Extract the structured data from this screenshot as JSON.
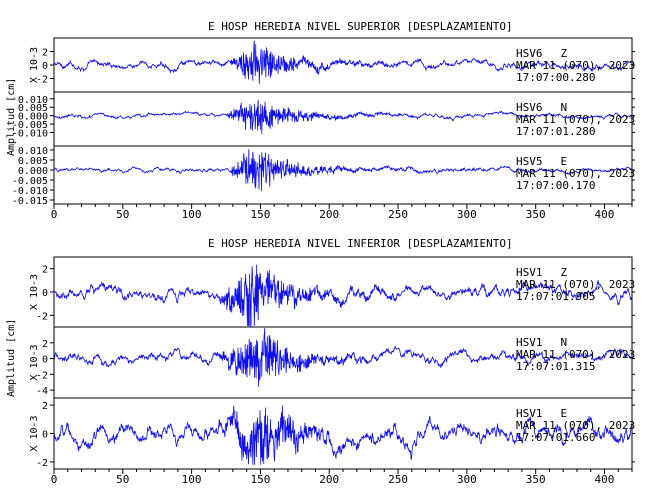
{
  "colors": {
    "trace": "#1010ee",
    "axis": "#000000",
    "background": "#ffffff"
  },
  "groups": [
    {
      "title": "E HOSP HEREDIA NIVEL SUPERIOR [DESPLAZAMIENTO]",
      "ylabel": "Amplitud [cm]",
      "xticks": [
        "0",
        "50",
        "100",
        "150",
        "200",
        "250",
        "300",
        "350",
        "400"
      ]
    },
    {
      "title": "E HOSP HEREDIA NIVEL INFERIOR [DESPLAZAMIENTO]",
      "ylabel": "Amplitud [cm]",
      "xticks": [
        "0",
        "50",
        "100",
        "150",
        "200",
        "250",
        "300",
        "350",
        "400"
      ]
    }
  ],
  "chart_data": [
    {
      "type": "line",
      "title": "E HOSP HEREDIA NIVEL SUPERIOR [DESPLAZAMIENTO]",
      "ylabel": "Amplitud [cm]",
      "xlim": [
        0,
        420
      ],
      "series": [
        {
          "name": "HSV6 Z",
          "station": "HSV6",
          "component": "Z",
          "date": "MAR 11 (070), 2023",
          "time": "17:07:00.280",
          "scale": "X 10-3",
          "ylim": [
            -4,
            4
          ],
          "yticks": [
            "2",
            "0",
            "-2"
          ],
          "tickvals": [
            2,
            0,
            -2
          ],
          "onset": 128,
          "peak_time": 147,
          "amplitude": 3.2,
          "noise": 0.35
        },
        {
          "name": "HSV6 N",
          "station": "HSV6",
          "component": "N",
          "date": "MAR 11 (070), 2023",
          "time": "17:07:01.280",
          "ylim": [
            -0.018,
            0.014
          ],
          "yticks": [
            "0.010",
            "0.005",
            "0.000",
            "-0.005",
            "-0.010"
          ],
          "tickvals": [
            0.01,
            0.005,
            0,
            -0.005,
            -0.01
          ],
          "onset": 126,
          "peak_time": 146,
          "amplitude": 0.011,
          "noise": 0.0008
        },
        {
          "name": "HSV5 E",
          "station": "HSV5",
          "component": "E",
          "date": "MAR 11 (070), 2023",
          "time": "17:07:00.170",
          "ylim": [
            -0.017,
            0.012
          ],
          "yticks": [
            "0.010",
            "0.005",
            "0.000",
            "-0.005",
            "-0.010",
            "-0.015"
          ],
          "tickvals": [
            0.01,
            0.005,
            0,
            -0.005,
            -0.01,
            -0.015
          ],
          "onset": 128,
          "peak_time": 145,
          "amplitude": 0.012,
          "noise": 0.0007
        }
      ]
    },
    {
      "type": "line",
      "title": "E HOSP HEREDIA NIVEL INFERIOR [DESPLAZAMIENTO]",
      "ylabel": "Amplitud [cm]",
      "xlim": [
        0,
        420
      ],
      "series": [
        {
          "name": "HSV1 Z",
          "station": "HSV1",
          "component": "Z",
          "date": "MAR 11 (070), 2023",
          "time": "17:07:01.905",
          "scale": "X 10-3",
          "ylim": [
            -3,
            3
          ],
          "yticks": [
            "2",
            "0",
            "-2"
          ],
          "tickvals": [
            2,
            0,
            -2
          ],
          "onset": 120,
          "peak_time": 145,
          "amplitude": 2.8,
          "noise": 0.35
        },
        {
          "name": "HSV1 N",
          "station": "HSV1",
          "component": "N",
          "date": "MAR 11 (070), 2023",
          "time": "17:07:01.315",
          "scale": "X 10-3",
          "ylim": [
            -5,
            4
          ],
          "yticks": [
            "2",
            "0",
            "-2",
            "-4"
          ],
          "tickvals": [
            2,
            0,
            -2,
            -4
          ],
          "onset": 120,
          "peak_time": 150,
          "amplitude": 3.6,
          "noise": 0.45
        },
        {
          "name": "HSV1 E",
          "station": "HSV1",
          "component": "E",
          "date": "MAR 11 (070), 2023",
          "time": "17:07:01.660",
          "scale": "X 10-3",
          "ylim": [
            -2.5,
            2.5
          ],
          "yticks": [
            "2",
            "0",
            "-2"
          ],
          "tickvals": [
            2,
            0,
            -2
          ],
          "onset": 120,
          "peak_time": 152,
          "amplitude": 2.2,
          "noise": 0.45
        }
      ]
    }
  ]
}
